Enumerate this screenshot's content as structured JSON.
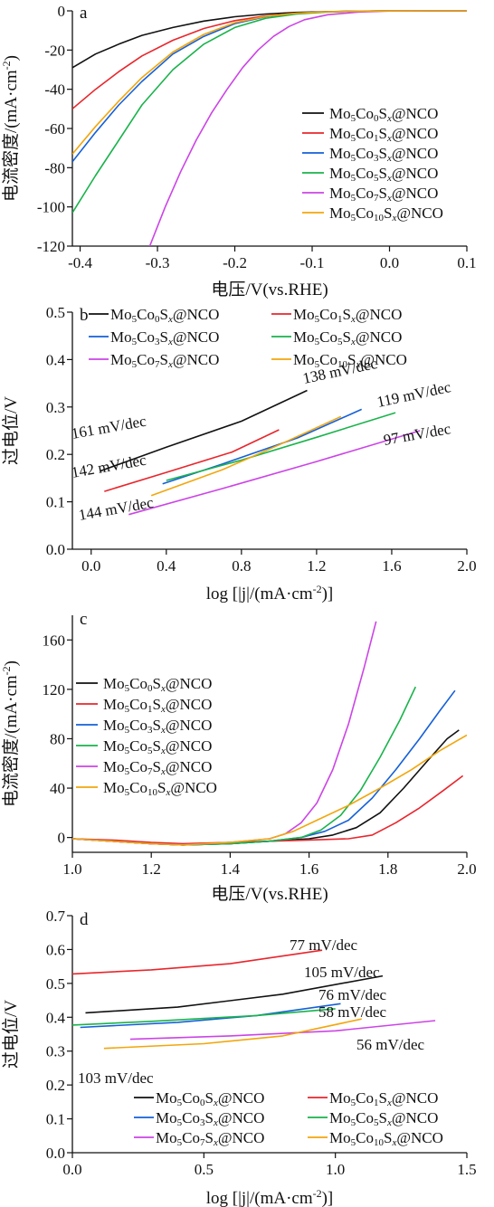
{
  "colors": {
    "Mo5Co0": "#111111",
    "Mo5Co1": "#e8262c",
    "Mo5Co3": "#1560d8",
    "Mo5Co5": "#19b34b",
    "Mo5Co7": "#cc44e6",
    "Mo5Co10": "#f2a60c"
  },
  "chart_data": [
    {
      "panel": "a",
      "type": "line",
      "xlabel": "电压/V(vs.RHE)",
      "ylabel": "电流密度/(mA·cm⁻²)",
      "xlim": [
        -0.41,
        0.1
      ],
      "ylim": [
        -120,
        0
      ],
      "xticks": [
        "-0.4",
        "-0.3",
        "-0.2",
        "-0.1",
        "0.0",
        "0.1"
      ],
      "yticks": [
        "0",
        "-20",
        "-40",
        "-60",
        "-80",
        "-100",
        "-120"
      ],
      "legend": "right",
      "series": [
        {
          "name": "Mo5Co0Sx@NCO",
          "color_key": "Mo5Co0",
          "x": [
            -0.41,
            -0.38,
            -0.35,
            -0.32,
            -0.28,
            -0.24,
            -0.2,
            -0.16,
            -0.12,
            -0.08,
            -0.04,
            0.0,
            0.05,
            0.1
          ],
          "y": [
            -29,
            -22,
            -17,
            -12.5,
            -8.5,
            -5.2,
            -3,
            -1.6,
            -0.8,
            -0.4,
            -0.15,
            -0.05,
            0,
            0
          ]
        },
        {
          "name": "Mo5Co1Sx@NCO",
          "color_key": "Mo5Co1",
          "x": [
            -0.41,
            -0.38,
            -0.35,
            -0.32,
            -0.28,
            -0.24,
            -0.2,
            -0.16,
            -0.12,
            -0.08,
            -0.04,
            0.0,
            0.05,
            0.1
          ],
          "y": [
            -50,
            -40,
            -31,
            -23,
            -15,
            -9,
            -5,
            -2.6,
            -1.2,
            -0.5,
            -0.2,
            -0.05,
            0,
            0
          ]
        },
        {
          "name": "Mo5Co3Sx@NCO",
          "color_key": "Mo5Co3",
          "x": [
            -0.41,
            -0.38,
            -0.35,
            -0.32,
            -0.28,
            -0.24,
            -0.2,
            -0.16,
            -0.12,
            -0.08,
            -0.04,
            0.0,
            0.05,
            0.1
          ],
          "y": [
            -77,
            -62,
            -48,
            -36,
            -22,
            -13,
            -6.5,
            -3,
            -1.3,
            -0.5,
            -0.2,
            -0.05,
            0,
            0
          ]
        },
        {
          "name": "Mo5Co5Sx@NCO",
          "color_key": "Mo5Co5",
          "x": [
            -0.41,
            -0.38,
            -0.35,
            -0.32,
            -0.28,
            -0.24,
            -0.2,
            -0.16,
            -0.12,
            -0.08,
            -0.04,
            0.0,
            0.05,
            0.1
          ],
          "y": [
            -103,
            -84,
            -66,
            -48,
            -30,
            -17,
            -8.5,
            -3.8,
            -1.6,
            -0.6,
            -0.2,
            -0.05,
            0,
            0
          ]
        },
        {
          "name": "Mo5Co7Sx@NCO",
          "color_key": "Mo5Co7",
          "x": [
            -0.31,
            -0.29,
            -0.27,
            -0.25,
            -0.23,
            -0.21,
            -0.19,
            -0.17,
            -0.15,
            -0.13,
            -0.11,
            -0.08,
            -0.04,
            0.0,
            0.05,
            0.1
          ],
          "y": [
            -120,
            -100,
            -82,
            -66,
            -52,
            -40,
            -29,
            -20,
            -13,
            -8,
            -4.5,
            -2,
            -0.6,
            -0.1,
            0,
            0
          ]
        },
        {
          "name": "Mo5Co10Sx@NCO",
          "color_key": "Mo5Co10",
          "x": [
            -0.41,
            -0.38,
            -0.35,
            -0.32,
            -0.28,
            -0.24,
            -0.2,
            -0.16,
            -0.12,
            -0.08,
            -0.04,
            0.0,
            0.05,
            0.1
          ],
          "y": [
            -73,
            -59,
            -46,
            -34,
            -21,
            -12,
            -6,
            -2.8,
            -1.2,
            -0.5,
            -0.2,
            -0.05,
            0,
            0
          ]
        }
      ]
    },
    {
      "panel": "b",
      "type": "line",
      "xlabel": "log [|j|/(mA·cm⁻²)]",
      "ylabel": "过电位/V",
      "xlim": [
        -0.1,
        2.0
      ],
      "ylim": [
        0.0,
        0.5
      ],
      "xticks": [
        "0.0",
        "0.4",
        "0.8",
        "1.2",
        "1.6",
        "2.0"
      ],
      "yticks": [
        "0.0",
        "0.1",
        "0.2",
        "0.3",
        "0.4",
        "0.5"
      ],
      "legend": "top",
      "series": [
        {
          "name": "Mo5Co0Sx@NCO",
          "color_key": "Mo5Co0",
          "x": [
            0.05,
            0.4,
            0.8,
            1.15
          ],
          "y": [
            0.165,
            0.215,
            0.27,
            0.335
          ]
        },
        {
          "name": "Mo5Co1Sx@NCO",
          "color_key": "Mo5Co1",
          "x": [
            0.07,
            0.4,
            0.75,
            1.0
          ],
          "y": [
            0.122,
            0.162,
            0.205,
            0.252
          ]
        },
        {
          "name": "Mo5Co3Sx@NCO",
          "color_key": "Mo5Co3",
          "x": [
            0.38,
            0.7,
            1.1,
            1.44
          ],
          "y": [
            0.138,
            0.18,
            0.235,
            0.295
          ]
        },
        {
          "name": "Mo5Co5Sx@NCO",
          "color_key": "Mo5Co5",
          "x": [
            0.4,
            0.8,
            1.2,
            1.62
          ],
          "y": [
            0.145,
            0.188,
            0.236,
            0.288
          ]
        },
        {
          "name": "Mo5Co7Sx@NCO",
          "color_key": "Mo5Co7",
          "x": [
            0.2,
            0.7,
            1.2,
            1.75
          ],
          "y": [
            0.073,
            0.128,
            0.185,
            0.25
          ]
        },
        {
          "name": "Mo5Co10Sx@NCO",
          "color_key": "Mo5Co10",
          "x": [
            0.32,
            0.7,
            1.0,
            1.33
          ],
          "y": [
            0.113,
            0.168,
            0.22,
            0.28
          ]
        }
      ],
      "annotations": [
        "161 mV/dec",
        "142 mV/dec",
        "144 mV/dec",
        "138 mV/dec",
        "119 mV/dec",
        "97 mV/dec"
      ]
    },
    {
      "panel": "c",
      "type": "line",
      "xlabel": "电压/V(vs.RHE)",
      "ylabel": "电流密度/(mA·cm⁻²)",
      "xlim": [
        1.0,
        2.0
      ],
      "ylim": [
        -12,
        180
      ],
      "xticks": [
        "1.0",
        "1.2",
        "1.4",
        "1.6",
        "1.8",
        "2.0"
      ],
      "yticks": [
        "0",
        "40",
        "80",
        "120",
        "160"
      ],
      "legend": "left",
      "series": [
        {
          "name": "Mo5Co0Sx@NCO",
          "color_key": "Mo5Co0",
          "x": [
            1.0,
            1.1,
            1.2,
            1.28,
            1.4,
            1.5,
            1.6,
            1.66,
            1.72,
            1.78,
            1.84,
            1.9,
            1.95,
            1.98
          ],
          "y": [
            -1,
            -3,
            -5,
            -6,
            -5,
            -3,
            -1,
            2,
            8,
            20,
            40,
            62,
            80,
            87
          ]
        },
        {
          "name": "Mo5Co1Sx@NCO",
          "color_key": "Mo5Co1",
          "x": [
            1.0,
            1.1,
            1.2,
            1.28,
            1.4,
            1.5,
            1.6,
            1.7,
            1.76,
            1.82,
            1.88,
            1.94,
            1.99
          ],
          "y": [
            -1,
            -2,
            -4,
            -5,
            -4,
            -3,
            -2,
            -1,
            2,
            12,
            24,
            38,
            50
          ]
        },
        {
          "name": "Mo5Co3Sx@NCO",
          "color_key": "Mo5Co3",
          "x": [
            1.0,
            1.1,
            1.2,
            1.28,
            1.4,
            1.5,
            1.58,
            1.64,
            1.7,
            1.76,
            1.82,
            1.88,
            1.93,
            1.97
          ],
          "y": [
            -1,
            -3,
            -5,
            -6,
            -5,
            -3,
            0,
            5,
            14,
            32,
            55,
            80,
            102,
            119
          ]
        },
        {
          "name": "Mo5Co5Sx@NCO",
          "color_key": "Mo5Co5",
          "x": [
            1.0,
            1.1,
            1.2,
            1.28,
            1.4,
            1.5,
            1.58,
            1.63,
            1.68,
            1.73,
            1.78,
            1.83,
            1.87
          ],
          "y": [
            -1,
            -3,
            -5,
            -6,
            -5,
            -3,
            0,
            6,
            18,
            38,
            65,
            95,
            122
          ]
        },
        {
          "name": "Mo5Co7Sx@NCO",
          "color_key": "Mo5Co7",
          "x": [
            1.0,
            1.1,
            1.2,
            1.28,
            1.4,
            1.5,
            1.54,
            1.58,
            1.62,
            1.66,
            1.7,
            1.74,
            1.77
          ],
          "y": [
            -1,
            -3,
            -5,
            -6,
            -4,
            -1,
            3,
            12,
            28,
            55,
            92,
            138,
            175
          ]
        },
        {
          "name": "Mo5Co10Sx@NCO",
          "color_key": "Mo5Co10",
          "x": [
            1.0,
            1.1,
            1.2,
            1.28,
            1.4,
            1.5,
            1.56,
            1.62,
            1.7,
            1.78,
            1.86,
            1.93,
            2.0
          ],
          "y": [
            -1,
            -3,
            -5,
            -6,
            -4,
            -1,
            5,
            14,
            26,
            40,
            55,
            70,
            83
          ]
        }
      ]
    },
    {
      "panel": "d",
      "type": "line",
      "xlabel": "log [|j|/(mA·cm⁻²)]",
      "ylabel": "过电位/V",
      "xlim": [
        0.0,
        1.5
      ],
      "ylim": [
        0.0,
        0.7
      ],
      "xticks": [
        "0.0",
        "0.5",
        "1.0",
        "1.5"
      ],
      "yticks": [
        "0.0",
        "0.1",
        "0.2",
        "0.3",
        "0.4",
        "0.5",
        "0.6",
        "0.7"
      ],
      "legend": "bottom",
      "series": [
        {
          "name": "Mo5Co0Sx@NCO",
          "color_key": "Mo5Co0",
          "x": [
            0.05,
            0.4,
            0.8,
            1.18
          ],
          "y": [
            0.413,
            0.43,
            0.468,
            0.522
          ]
        },
        {
          "name": "Mo5Co1Sx@NCO",
          "color_key": "Mo5Co1",
          "x": [
            0.0,
            0.3,
            0.6,
            0.95
          ],
          "y": [
            0.528,
            0.54,
            0.558,
            0.598
          ]
        },
        {
          "name": "Mo5Co3Sx@NCO",
          "color_key": "Mo5Co3",
          "x": [
            0.03,
            0.4,
            0.7,
            1.02
          ],
          "y": [
            0.37,
            0.385,
            0.405,
            0.44
          ]
        },
        {
          "name": "Mo5Co5Sx@NCO",
          "color_key": "Mo5Co5",
          "x": [
            0.0,
            0.3,
            0.7,
            1.0
          ],
          "y": [
            0.377,
            0.388,
            0.405,
            0.425
          ]
        },
        {
          "name": "Mo5Co7Sx@NCO",
          "color_key": "Mo5Co7",
          "x": [
            0.22,
            0.6,
            1.0,
            1.38
          ],
          "y": [
            0.335,
            0.345,
            0.36,
            0.39
          ]
        },
        {
          "name": "Mo5Co10Sx@NCO",
          "color_key": "Mo5Co10",
          "x": [
            0.12,
            0.5,
            0.8,
            1.1
          ],
          "y": [
            0.308,
            0.322,
            0.345,
            0.395
          ]
        }
      ],
      "annotations": [
        "77 mV/dec",
        "105 mV/dec",
        "76 mV/dec",
        "58 mV/dec",
        "56 mV/dec",
        "103 mV/dec"
      ]
    }
  ]
}
